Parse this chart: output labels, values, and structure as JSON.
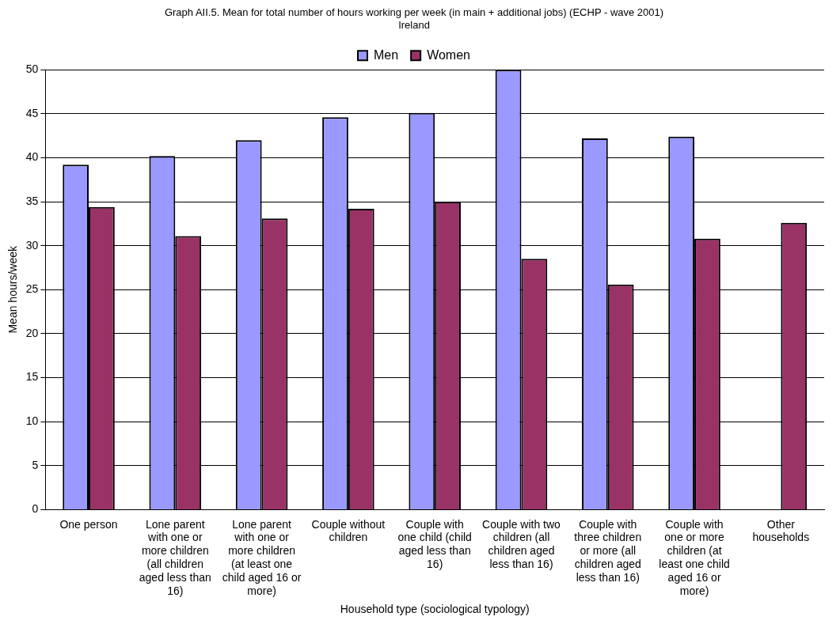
{
  "chart_data": {
    "type": "bar",
    "title": "Graph AII.5. Mean for total number of hours working per week (in main + additional jobs) (ECHP - wave 2001)",
    "subtitle": "Ireland",
    "xlabel": "Household type (sociological typology)",
    "ylabel": "Mean hours/week",
    "categories": [
      "One person",
      "Lone parent with one or more children (all children aged less than 16)",
      "Lone parent with one or more children (at least one child aged 16 or more)",
      "Couple without children",
      "Couple with one child (child aged less than 16)",
      "Couple with two children (all children aged less than 16)",
      "Couple with three children or more (all children aged less than 16)",
      "Couple with one or more children (at least one child aged 16 or more)",
      "Other households"
    ],
    "series": [
      {
        "name": "Men",
        "color": "#9999ff",
        "values": [
          39.2,
          40.2,
          42.0,
          44.6,
          45.1,
          50.0,
          42.2,
          42.4,
          null
        ]
      },
      {
        "name": "Women",
        "color": "#993366",
        "values": [
          34.4,
          31.1,
          33.1,
          34.2,
          35.0,
          28.5,
          25.6,
          30.8,
          32.6
        ]
      }
    ],
    "ylim": [
      0,
      50
    ],
    "yticks": [
      0,
      5,
      10,
      15,
      20,
      25,
      30,
      35,
      40,
      45,
      50
    ],
    "grid": "y",
    "legend": "top"
  }
}
